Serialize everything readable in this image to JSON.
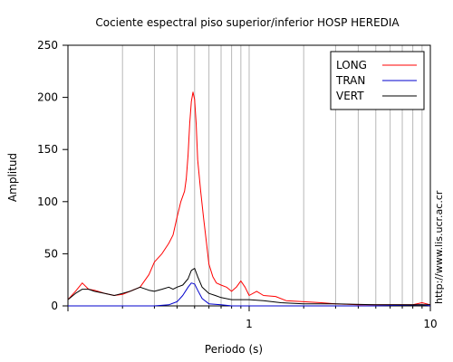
{
  "chart_data": {
    "type": "line",
    "title": "Cociente espectral piso superior/inferior  HOSP HEREDIA",
    "xlabel": "Periodo (s)",
    "ylabel": "Amplitud",
    "x_scale": "log",
    "xlim": [
      0.1,
      10
    ],
    "ylim": [
      0,
      250
    ],
    "x_ticks": [
      1,
      10
    ],
    "x_tick_labels": [
      "1",
      "10"
    ],
    "y_ticks": [
      0,
      50,
      100,
      150,
      200,
      250
    ],
    "y_tick_labels": [
      "0",
      "50",
      "100",
      "150",
      "200",
      "250"
    ],
    "grid": "vertical",
    "legend": "top-right",
    "series": [
      {
        "name": "LONG",
        "color": "#ff0000",
        "x": [
          0.1,
          0.11,
          0.12,
          0.13,
          0.14,
          0.16,
          0.18,
          0.2,
          0.22,
          0.25,
          0.28,
          0.3,
          0.33,
          0.36,
          0.38,
          0.4,
          0.42,
          0.44,
          0.45,
          0.46,
          0.47,
          0.48,
          0.49,
          0.5,
          0.51,
          0.52,
          0.54,
          0.56,
          0.58,
          0.6,
          0.63,
          0.66,
          0.7,
          0.75,
          0.8,
          0.85,
          0.9,
          0.95,
          1.0,
          1.1,
          1.2,
          1.4,
          1.6,
          2.0,
          2.5,
          3.0,
          4.0,
          5.0,
          6.0,
          8.0,
          9.0,
          10.0
        ],
        "y": [
          6,
          14,
          22,
          16,
          15,
          12,
          10,
          11,
          14,
          18,
          30,
          42,
          50,
          60,
          68,
          85,
          100,
          110,
          122,
          145,
          175,
          196,
          205,
          198,
          175,
          140,
          110,
          85,
          62,
          40,
          28,
          22,
          20,
          18,
          14,
          18,
          24,
          18,
          10,
          14,
          10,
          9,
          5,
          4,
          3,
          2,
          1,
          1,
          1,
          1,
          3,
          1
        ]
      },
      {
        "name": "TRAN",
        "color": "#0000cc",
        "x": [
          0.1,
          0.13,
          0.2,
          0.3,
          0.36,
          0.4,
          0.43,
          0.46,
          0.48,
          0.5,
          0.52,
          0.55,
          0.6,
          0.7,
          0.8,
          1.0,
          2.0,
          5.0,
          9.0,
          10.0
        ],
        "y": [
          0,
          0,
          0,
          0,
          1,
          4,
          10,
          18,
          22,
          21,
          15,
          7,
          2,
          1,
          0,
          0,
          0,
          0,
          1,
          0
        ]
      },
      {
        "name": "VERT",
        "color": "#000000",
        "x": [
          0.1,
          0.11,
          0.12,
          0.13,
          0.14,
          0.16,
          0.18,
          0.2,
          0.22,
          0.25,
          0.28,
          0.3,
          0.33,
          0.36,
          0.38,
          0.4,
          0.43,
          0.46,
          0.48,
          0.5,
          0.52,
          0.55,
          0.6,
          0.65,
          0.7,
          0.8,
          0.9,
          1.0,
          1.2,
          1.5,
          2.0,
          3.0,
          5.0,
          7.0,
          10.0
        ],
        "y": [
          6,
          12,
          16,
          16,
          14,
          12,
          10,
          12,
          14,
          18,
          15,
          14,
          16,
          18,
          16,
          18,
          20,
          26,
          34,
          36,
          28,
          18,
          12,
          10,
          8,
          6,
          6,
          6,
          5,
          3,
          2,
          2,
          1,
          1,
          1
        ]
      }
    ]
  },
  "watermark": "http://www.lis.ucr.ac.cr"
}
